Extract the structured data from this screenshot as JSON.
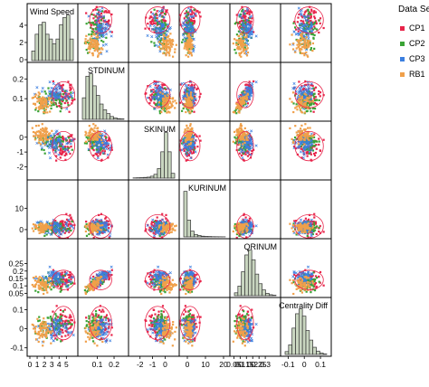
{
  "chart_data": {
    "type": "scatter",
    "subtype": "scatterplot-matrix",
    "grid": false,
    "legend_position": "right",
    "legend": {
      "title": "Data Se",
      "entries": [
        {
          "label": "CP1",
          "color": "#e8244a",
          "marker": "square"
        },
        {
          "label": "CP2",
          "color": "#3aa335",
          "marker": "square"
        },
        {
          "label": "CP3",
          "color": "#3b7fe0",
          "marker": "square"
        },
        {
          "label": "RB1",
          "color": "#f0a04a",
          "marker": "square"
        }
      ]
    },
    "variables": [
      {
        "name": "Wind Speed",
        "range": [
          0,
          6.2
        ],
        "ticks": [
          0,
          1,
          2,
          3,
          4,
          5
        ],
        "tick_labels": [
          "0",
          "1",
          "2",
          "3",
          "4",
          "5"
        ],
        "y_ticks": [
          0,
          2,
          4
        ],
        "y_tick_labels": [
          "0",
          "2",
          "4"
        ],
        "histogram": [
          0.2,
          0.55,
          0.75,
          0.8,
          0.55,
          0.45,
          0.35,
          0.45,
          0.75,
          0.9,
          0.95,
          0.45
        ]
      },
      {
        "name": "STDINUM",
        "range": [
          0,
          0.27
        ],
        "ticks": [
          0.1,
          0.2
        ],
        "tick_labels": [
          "0.1",
          "0.2"
        ],
        "y_ticks": [
          0.1,
          0.2
        ],
        "y_tick_labels": [
          "0.1",
          "0.2"
        ],
        "histogram": [
          0.45,
          0.9,
          0.95,
          0.7,
          0.5,
          0.32,
          0.2,
          0.12,
          0.06,
          0.03,
          0.015,
          0.01
        ]
      },
      {
        "name": "SKINUM",
        "range": [
          -2.7,
          0.9
        ],
        "ticks": [
          -2,
          -1,
          0
        ],
        "tick_labels": [
          "-2",
          "-1",
          "0"
        ],
        "y_ticks": [
          -2,
          -1,
          0
        ],
        "y_tick_labels": [
          "-2",
          "-1",
          "0"
        ],
        "histogram": [
          0.005,
          0.008,
          0.01,
          0.015,
          0.02,
          0.04,
          0.08,
          0.2,
          0.55,
          0.95,
          0.55,
          0.1
        ]
      },
      {
        "name": "KURINUM",
        "range": [
          -3,
          22
        ],
        "ticks": [
          0,
          10,
          20
        ],
        "tick_labels": [
          "0",
          "10",
          "20"
        ],
        "y_ticks": [
          0,
          10
        ],
        "y_tick_labels": [
          "0",
          "10"
        ],
        "histogram": [
          0.95,
          0.35,
          0.12,
          0.05,
          0.03,
          0.015,
          0.01,
          0.008,
          0.005,
          0.004,
          0.003,
          0.002
        ]
      },
      {
        "name": "QRINUM",
        "range": [
          0.04,
          0.4
        ],
        "ticks": [
          0.05,
          0.1,
          0.15,
          0.2,
          0.25,
          0.3
        ],
        "tick_labels": [
          "0.05",
          "0.1",
          "0.15",
          "0.2",
          "0.25",
          "0.3"
        ],
        "y_ticks": [
          0.05,
          0.1,
          0.15,
          0.2,
          0.25
        ],
        "y_tick_labels": [
          "0.05",
          "0.1",
          "0.15",
          "0.2",
          "0.25"
        ],
        "histogram": [
          0.06,
          0.2,
          0.5,
          0.85,
          0.95,
          0.75,
          0.45,
          0.25,
          0.12,
          0.05,
          0.02,
          0.01
        ]
      },
      {
        "name": "Centrality Diff",
        "range": [
          -0.13,
          0.15
        ],
        "ticks": [
          -0.1,
          0,
          0.1
        ],
        "tick_labels": [
          "-0.1",
          "0",
          "0.1"
        ],
        "y_ticks": [
          -0.1,
          0,
          0.1
        ],
        "y_tick_labels": [
          "-0.1",
          "0",
          "0.1"
        ],
        "histogram": [
          0.06,
          0.2,
          0.55,
          0.85,
          0.95,
          0.8,
          0.5,
          0.3,
          0.15,
          0.07,
          0.03,
          0.01
        ]
      }
    ],
    "series_params": {
      "CP1": {
        "means": [
          4.6,
          0.12,
          -0.6,
          1.5,
          0.14,
          0.03
        ],
        "sds": [
          0.7,
          0.03,
          0.45,
          2.5,
          0.03,
          0.04
        ]
      },
      "CP2": {
        "means": [
          3.0,
          0.09,
          -0.3,
          1.0,
          0.12,
          0.02
        ],
        "sds": [
          1.2,
          0.025,
          0.3,
          1.5,
          0.025,
          0.03
        ]
      },
      "CP3": {
        "means": [
          3.6,
          0.12,
          -0.4,
          1.2,
          0.15,
          0.0
        ],
        "sds": [
          1.0,
          0.03,
          0.35,
          2.0,
          0.03,
          0.03
        ]
      },
      "RB1": {
        "means": [
          1.6,
          0.08,
          0.1,
          0.6,
          0.11,
          -0.01
        ],
        "sds": [
          0.6,
          0.025,
          0.3,
          1.0,
          0.025,
          0.03
        ]
      }
    },
    "points_per_series": 70
  }
}
